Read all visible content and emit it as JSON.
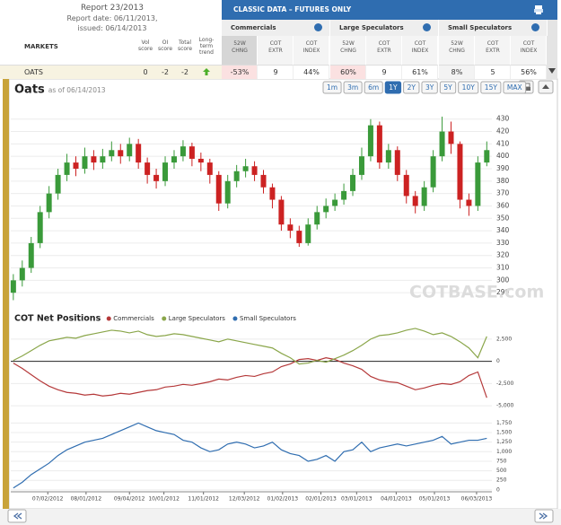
{
  "report": {
    "title": "Report 23/2013",
    "date": "Report date: 06/11/2013,",
    "issued": "issued: 06/14/2013"
  },
  "table": {
    "banner": "CLASSIC DATA – FUTURES ONLY",
    "markets_header": "MARKETS",
    "score_headers": [
      "Vol score",
      "OI score",
      "Total score",
      "Long-term trend"
    ],
    "row": {
      "market": "OATS",
      "scores": [
        "0",
        "-2",
        "-2"
      ],
      "trend": "up"
    },
    "groups": [
      {
        "name": "Commercials",
        "columns": [
          "52W CHNG",
          "COT EXTR",
          "COT INDEX"
        ],
        "values": [
          "-53%",
          "9",
          "44%"
        ]
      },
      {
        "name": "Large Speculators",
        "columns": [
          "52W CHNG",
          "COT EXTR",
          "COT INDEX"
        ],
        "values": [
          "60%",
          "9",
          "61%"
        ]
      },
      {
        "name": "Small Speculators",
        "columns": [
          "52W CHNG",
          "COT EXTR",
          "COT INDEX"
        ],
        "values": [
          "8%",
          "5",
          "56%"
        ]
      }
    ]
  },
  "toolbar": {
    "ranges": [
      "1m",
      "3m",
      "6m",
      "1Y",
      "2Y",
      "3Y",
      "5Y",
      "10Y",
      "15Y",
      "MAX"
    ],
    "selected_range": "1Y"
  },
  "chart_data": [
    {
      "type": "candlestick",
      "title": "Oats",
      "subtitle": "as of 06/14/2013",
      "watermark": "COTBASE.com",
      "up_color": "#3a9a3a",
      "down_color": "#cc2222",
      "grid": true,
      "xlim": [
        "06/03/2012",
        "06/15/2013"
      ],
      "ylim": [
        280,
        445
      ],
      "yticks": [
        290,
        300,
        310,
        320,
        330,
        340,
        350,
        360,
        370,
        380,
        390,
        400,
        410,
        420,
        430
      ],
      "x": [
        "06/05/2012",
        "06/12/2012",
        "06/19/2012",
        "06/26/2012",
        "07/03/2012",
        "07/10/2012",
        "07/17/2012",
        "07/24/2012",
        "07/31/2012",
        "08/07/2012",
        "08/14/2012",
        "08/21/2012",
        "08/28/2012",
        "09/04/2012",
        "09/11/2012",
        "09/18/2012",
        "09/25/2012",
        "10/02/2012",
        "10/09/2012",
        "10/16/2012",
        "10/23/2012",
        "10/30/2012",
        "11/06/2012",
        "11/13/2012",
        "11/20/2012",
        "11/27/2012",
        "12/04/2012",
        "12/11/2012",
        "12/18/2012",
        "12/25/2012",
        "01/01/2013",
        "01/08/2013",
        "01/15/2013",
        "01/22/2013",
        "01/29/2013",
        "02/05/2013",
        "02/12/2013",
        "02/19/2013",
        "02/26/2013",
        "03/05/2013",
        "03/12/2013",
        "03/19/2013",
        "03/26/2013",
        "04/02/2013",
        "04/09/2013",
        "04/16/2013",
        "04/23/2013",
        "04/30/2013",
        "05/07/2013",
        "05/14/2013",
        "05/21/2013",
        "05/28/2013",
        "06/04/2013",
        "06/11/2013"
      ],
      "open": [
        290,
        300,
        310,
        330,
        355,
        370,
        385,
        395,
        390,
        400,
        395,
        400,
        405,
        400,
        410,
        395,
        385,
        380,
        395,
        400,
        408,
        398,
        395,
        385,
        362,
        380,
        388,
        392,
        385,
        375,
        365,
        345,
        340,
        330,
        345,
        355,
        360,
        365,
        372,
        385,
        400,
        425,
        395,
        405,
        385,
        368,
        360,
        375,
        400,
        420,
        410,
        365,
        360,
        395
      ],
      "high": [
        305,
        316,
        335,
        360,
        376,
        390,
        402,
        400,
        407,
        405,
        406,
        412,
        410,
        415,
        414,
        399,
        390,
        400,
        405,
        413,
        411,
        403,
        398,
        388,
        385,
        393,
        398,
        396,
        389,
        378,
        368,
        350,
        344,
        350,
        360,
        366,
        370,
        378,
        390,
        407,
        430,
        428,
        410,
        408,
        389,
        372,
        380,
        405,
        432,
        428,
        412,
        370,
        400,
        412
      ],
      "low": [
        284,
        295,
        306,
        326,
        350,
        365,
        380,
        384,
        386,
        389,
        390,
        396,
        394,
        396,
        390,
        378,
        374,
        376,
        390,
        396,
        392,
        388,
        378,
        356,
        358,
        375,
        383,
        380,
        370,
        358,
        340,
        334,
        327,
        328,
        341,
        350,
        356,
        361,
        368,
        381,
        396,
        390,
        390,
        380,
        362,
        354,
        356,
        371,
        396,
        402,
        358,
        352,
        356,
        392
      ],
      "close": [
        300,
        310,
        330,
        355,
        370,
        385,
        395,
        390,
        400,
        395,
        400,
        405,
        400,
        410,
        395,
        385,
        380,
        395,
        400,
        408,
        398,
        395,
        385,
        362,
        380,
        388,
        392,
        385,
        375,
        365,
        345,
        340,
        330,
        345,
        355,
        360,
        365,
        372,
        385,
        400,
        425,
        395,
        405,
        385,
        368,
        360,
        375,
        400,
        420,
        410,
        365,
        360,
        395,
        405
      ]
    },
    {
      "type": "line",
      "title": "COT Net Positions",
      "grid": true,
      "xlim": [
        "06/03/2012",
        "06/15/2013"
      ],
      "ylim": [
        -6000,
        4000
      ],
      "yticks": [
        {
          "value": 2500,
          "label": "2,500"
        },
        0,
        {
          "value": -2500,
          "label": "-2,500"
        },
        {
          "value": -5000,
          "label": "-5,000"
        }
      ],
      "x": [
        "06/05/2012",
        "06/12/2012",
        "06/19/2012",
        "06/26/2012",
        "07/03/2012",
        "07/10/2012",
        "07/17/2012",
        "07/24/2012",
        "07/31/2012",
        "08/07/2012",
        "08/14/2012",
        "08/21/2012",
        "08/28/2012",
        "09/04/2012",
        "09/11/2012",
        "09/18/2012",
        "09/25/2012",
        "10/02/2012",
        "10/09/2012",
        "10/16/2012",
        "10/23/2012",
        "10/30/2012",
        "11/06/2012",
        "11/13/2012",
        "11/20/2012",
        "11/27/2012",
        "12/04/2012",
        "12/11/2012",
        "12/18/2012",
        "12/25/2012",
        "01/01/2013",
        "01/08/2013",
        "01/15/2013",
        "01/22/2013",
        "01/29/2013",
        "02/05/2013",
        "02/12/2013",
        "02/19/2013",
        "02/26/2013",
        "03/05/2013",
        "03/12/2013",
        "03/19/2013",
        "03/26/2013",
        "04/02/2013",
        "04/09/2013",
        "04/16/2013",
        "04/23/2013",
        "04/30/2013",
        "05/07/2013",
        "05/14/2013",
        "05/21/2013",
        "05/28/2013",
        "06/04/2013",
        "06/11/2013"
      ],
      "series": [
        {
          "name": "Commercials",
          "color": "#b5393a",
          "values": [
            -200,
            -800,
            -1500,
            -2200,
            -2800,
            -3200,
            -3500,
            -3600,
            -3800,
            -3700,
            -3900,
            -3800,
            -3600,
            -3700,
            -3500,
            -3300,
            -3200,
            -2900,
            -2800,
            -2600,
            -2700,
            -2500,
            -2300,
            -2000,
            -2100,
            -1800,
            -1600,
            -1700,
            -1400,
            -1200,
            -600,
            -300,
            200,
            300,
            100,
            400,
            200,
            -200,
            -500,
            -900,
            -1700,
            -2100,
            -2300,
            -2400,
            -2800,
            -3200,
            -3000,
            -2700,
            -2500,
            -2600,
            -2300,
            -1600,
            -1200,
            -4100
          ]
        },
        {
          "name": "Large Speculators",
          "color": "#8aa64a",
          "values": [
            100,
            600,
            1200,
            1800,
            2300,
            2500,
            2700,
            2600,
            2900,
            3100,
            3300,
            3500,
            3400,
            3200,
            3400,
            3000,
            2800,
            2900,
            3100,
            3000,
            2800,
            2600,
            2400,
            2200,
            2500,
            2300,
            2100,
            1900,
            1700,
            1500,
            900,
            400,
            -300,
            -200,
            100,
            -100,
            300,
            700,
            1200,
            1800,
            2500,
            2900,
            3000,
            3200,
            3500,
            3700,
            3400,
            3000,
            3200,
            2800,
            2200,
            1500,
            400,
            2800
          ]
        }
      ]
    },
    {
      "type": "line",
      "grid": true,
      "xlim": [
        "06/03/2012",
        "06/15/2013"
      ],
      "ylim": [
        -50,
        1900
      ],
      "yticks": [
        0,
        250,
        500,
        750,
        {
          "value": 1000,
          "label": "1,000"
        },
        {
          "value": 1250,
          "label": "1,250"
        },
        {
          "value": 1500,
          "label": "1,500"
        },
        {
          "value": 1750,
          "label": "1,750"
        }
      ],
      "xticks": [
        "07/02/2012",
        "08/01/2012",
        "09/04/2012",
        "10/01/2012",
        "11/01/2012",
        "12/03/2012",
        "01/02/2013",
        "02/01/2013",
        "03/01/2013",
        "04/01/2013",
        "05/01/2013",
        "06/03/2013"
      ],
      "x": [
        "06/05/2012",
        "06/12/2012",
        "06/19/2012",
        "06/26/2012",
        "07/03/2012",
        "07/10/2012",
        "07/17/2012",
        "07/24/2012",
        "07/31/2012",
        "08/07/2012",
        "08/14/2012",
        "08/21/2012",
        "08/28/2012",
        "09/04/2012",
        "09/11/2012",
        "09/18/2012",
        "09/25/2012",
        "10/02/2012",
        "10/09/2012",
        "10/16/2012",
        "10/23/2012",
        "10/30/2012",
        "11/06/2012",
        "11/13/2012",
        "11/20/2012",
        "11/27/2012",
        "12/04/2012",
        "12/11/2012",
        "12/18/2012",
        "12/25/2012",
        "01/01/2013",
        "01/08/2013",
        "01/15/2013",
        "01/22/2013",
        "01/29/2013",
        "02/05/2013",
        "02/12/2013",
        "02/19/2013",
        "02/26/2013",
        "03/05/2013",
        "03/12/2013",
        "03/19/2013",
        "03/26/2013",
        "04/02/2013",
        "04/09/2013",
        "04/16/2013",
        "04/23/2013",
        "04/30/2013",
        "05/07/2013",
        "05/14/2013",
        "05/21/2013",
        "05/28/2013",
        "06/04/2013",
        "06/11/2013"
      ],
      "series": [
        {
          "name": "Small Speculators",
          "color": "#2f6db0",
          "values": [
            50,
            200,
            400,
            550,
            700,
            900,
            1050,
            1150,
            1250,
            1300,
            1350,
            1450,
            1550,
            1650,
            1750,
            1650,
            1550,
            1500,
            1450,
            1300,
            1250,
            1100,
            1000,
            1050,
            1200,
            1250,
            1200,
            1100,
            1150,
            1250,
            1050,
            950,
            900,
            750,
            800,
            900,
            750,
            1000,
            1050,
            1250,
            1000,
            1100,
            1150,
            1200,
            1150,
            1200,
            1250,
            1300,
            1400,
            1200,
            1250,
            1300,
            1300,
            1350
          ]
        }
      ]
    }
  ]
}
